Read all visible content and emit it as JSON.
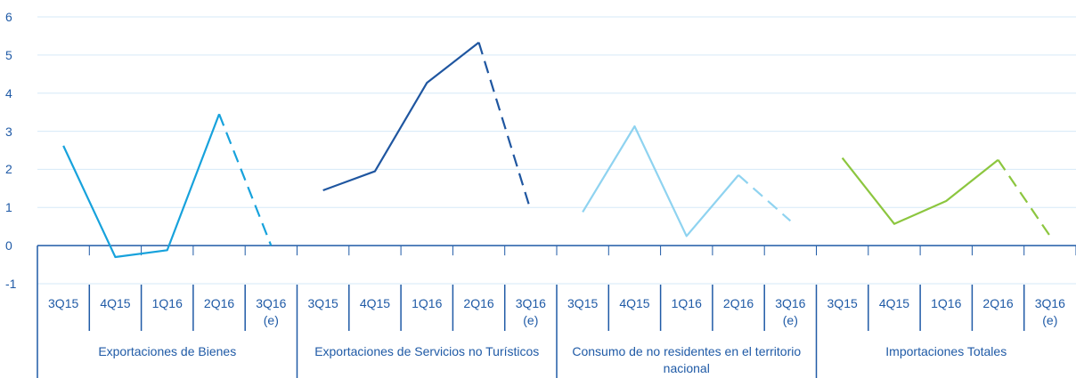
{
  "chart_data": {
    "type": "line",
    "categories": [
      "3Q15",
      "4Q15",
      "1Q16",
      "2Q16",
      "3Q16\n(e)"
    ],
    "series": [
      {
        "name": "Exportaciones de Bienes",
        "color": "#17a2dc",
        "values": [
          2.62,
          -0.3,
          -0.12,
          3.45,
          0.0
        ]
      },
      {
        "name": "Exportaciones de Servicios no Turísticos",
        "color": "#1f56a0",
        "values": [
          1.45,
          1.95,
          4.27,
          5.33,
          0.92
        ]
      },
      {
        "name": "Consumo de no residentes en el territorio nacional",
        "color": "#8fd3f0",
        "values": [
          0.88,
          3.13,
          0.25,
          1.85,
          0.65
        ]
      },
      {
        "name": "Importaciones Totales",
        "color": "#8cc63f",
        "values": [
          2.3,
          0.57,
          1.17,
          2.25,
          0.25
        ]
      }
    ],
    "dashed_segments": "last",
    "ylim": [
      -1,
      6
    ],
    "yticks": [
      -1,
      0,
      1,
      2,
      3,
      4,
      5,
      6
    ],
    "grid": true
  }
}
